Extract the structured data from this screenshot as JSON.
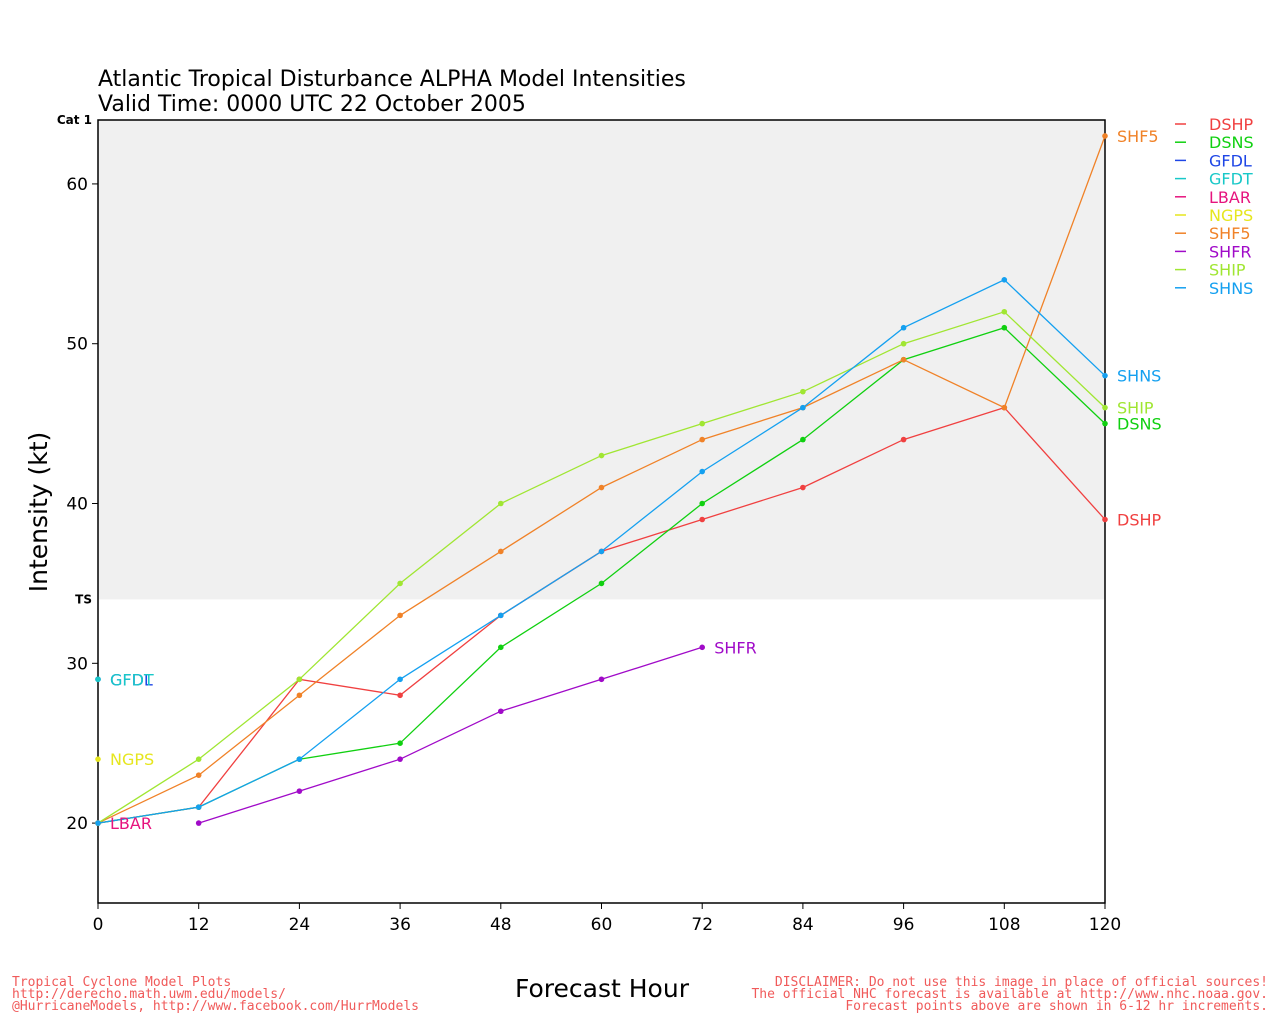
{
  "chart_data": {
    "type": "line",
    "title": "Atlantic Tropical Disturbance ALPHA Model Intensities",
    "subtitle": "Valid Time: 0000 UTC 22 October 2005",
    "xlabel": "Forecast Hour",
    "ylabel": "Intensity (kt)",
    "xlim": [
      0,
      120
    ],
    "ylim": [
      15,
      64
    ],
    "x_ticks": [
      0,
      12,
      24,
      36,
      48,
      60,
      72,
      84,
      96,
      108,
      120
    ],
    "y_ticks": [
      20,
      30,
      40,
      50,
      60
    ],
    "bands": [
      {
        "label": "TS",
        "from": 34,
        "to": 64,
        "color": "#f0f0f0"
      },
      {
        "label": "Cat 1",
        "from": 64,
        "to": 68,
        "color": "#dcdcdc"
      }
    ],
    "legend_position": "right",
    "series": [
      {
        "name": "DSHP",
        "color": "#f04040",
        "x": [
          0,
          12,
          24,
          36,
          48,
          60,
          72,
          84,
          96,
          108,
          120
        ],
        "y": [
          20,
          21,
          29,
          28,
          33,
          37,
          39,
          41,
          44,
          46,
          39
        ],
        "end_label": "DSHP"
      },
      {
        "name": "DSNS",
        "color": "#10d010",
        "x": [
          0,
          12,
          24,
          36,
          48,
          60,
          72,
          84,
          96,
          108,
          120
        ],
        "y": [
          20,
          21,
          24,
          25,
          31,
          35,
          40,
          44,
          49,
          51,
          45
        ],
        "end_label": "DSNS"
      },
      {
        "name": "GFDL",
        "color": "#1e46e6",
        "x": [
          0
        ],
        "y": [
          29
        ],
        "end_label": "GFDL"
      },
      {
        "name": "GFDT",
        "color": "#18c8c8",
        "x": [
          0
        ],
        "y": [
          29
        ],
        "end_label": "GFDT"
      },
      {
        "name": "LBAR",
        "color": "#e6147e",
        "x": [
          0
        ],
        "y": [
          20
        ],
        "end_label": "LBAR"
      },
      {
        "name": "NGPS",
        "color": "#e6e61e",
        "x": [
          0
        ],
        "y": [
          24
        ],
        "end_label": "NGPS"
      },
      {
        "name": "SHF5",
        "color": "#f08228",
        "x": [
          0,
          12,
          24,
          36,
          48,
          60,
          72,
          84,
          96,
          108,
          120
        ],
        "y": [
          20,
          23,
          28,
          33,
          37,
          41,
          44,
          46,
          49,
          46,
          63
        ],
        "end_label": "SHF5"
      },
      {
        "name": "SHFR",
        "color": "#a00ac8",
        "x": [
          12,
          24,
          36,
          48,
          60,
          72
        ],
        "y": [
          20,
          22,
          24,
          27,
          29,
          31
        ],
        "end_label": "SHFR"
      },
      {
        "name": "SHIP",
        "color": "#a0e632",
        "x": [
          0,
          12,
          24,
          36,
          48,
          60,
          72,
          84,
          96,
          108,
          120
        ],
        "y": [
          20,
          24,
          29,
          35,
          40,
          43,
          45,
          47,
          50,
          52,
          46
        ],
        "end_label": "SHIP"
      },
      {
        "name": "SHNS",
        "color": "#14a0f0",
        "x": [
          0,
          12,
          24,
          36,
          48,
          60,
          72,
          84,
          96,
          108,
          120
        ],
        "y": [
          20,
          21,
          24,
          29,
          33,
          37,
          42,
          46,
          51,
          54,
          48
        ],
        "end_label": "SHNS"
      }
    ]
  },
  "footer": {
    "left_lines": "Tropical Cyclone Model Plots\nhttp://derecho.math.uwm.edu/models/\n@HurricaneModels, http://www.facebook.com/HurrModels",
    "right_lines": "DISCLAIMER: Do not use this image in place of official sources!\nThe official NHC forecast is available at http://www.nhc.noaa.gov.\nForecast points above are shown in 6-12 hr increments."
  }
}
